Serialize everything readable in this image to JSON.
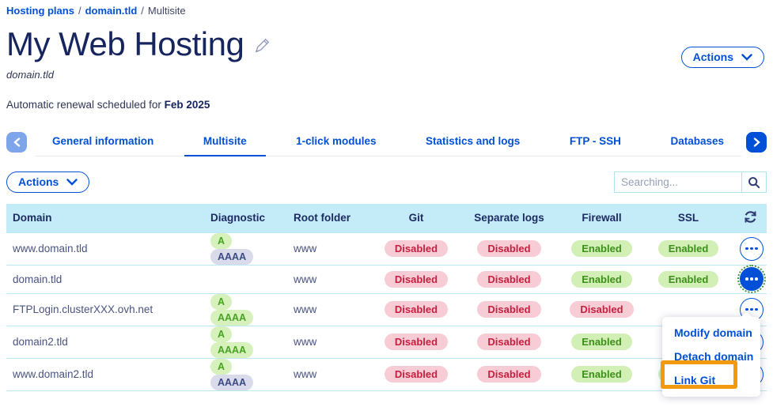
{
  "breadcrumb": {
    "separator": "/",
    "items": [
      {
        "label": "Hosting plans"
      },
      {
        "label": "domain.tld"
      },
      {
        "label": "Multisite"
      }
    ]
  },
  "header": {
    "title": "My Web Hosting",
    "subtitle": "domain.tld",
    "renewal_prefix": "Automatic renewal scheduled for",
    "renewal_date": "Feb 2025",
    "actions_label": "Actions"
  },
  "tabs": [
    {
      "label": "General information",
      "active": false
    },
    {
      "label": "Multisite",
      "active": true
    },
    {
      "label": "1-click modules",
      "active": false
    },
    {
      "label": "Statistics and logs",
      "active": false
    },
    {
      "label": "FTP - SSH",
      "active": false
    },
    {
      "label": "Databases",
      "active": false
    }
  ],
  "toolbar": {
    "actions_label": "Actions",
    "search_placeholder": "Searching..."
  },
  "table": {
    "columns": [
      "Domain",
      "Diagnostic",
      "Root folder",
      "Git",
      "Separate logs",
      "Firewall",
      "SSL"
    ],
    "rows": [
      {
        "domain": "www.domain.tld",
        "diagnostic": [
          {
            "label": "A",
            "variant": "green"
          },
          {
            "label": "AAAA",
            "variant": "gray"
          }
        ],
        "root_folder": "www",
        "git": "Disabled",
        "separate_logs": "Disabled",
        "firewall": "Enabled",
        "ssl": "Enabled",
        "menu_open": false
      },
      {
        "domain": "domain.tld",
        "diagnostic": [],
        "root_folder": "www",
        "git": "Disabled",
        "separate_logs": "Disabled",
        "firewall": "Enabled",
        "ssl": "Enabled",
        "menu_open": true
      },
      {
        "domain": "FTPLogin.clusterXXX.ovh.net",
        "diagnostic": [
          {
            "label": "A",
            "variant": "green"
          },
          {
            "label": "AAAA",
            "variant": "green"
          }
        ],
        "root_folder": "www",
        "git": "Disabled",
        "separate_logs": "Disabled",
        "firewall": "Disabled",
        "ssl": null,
        "menu_open": false
      },
      {
        "domain": "domain2.tld",
        "diagnostic": [
          {
            "label": "A",
            "variant": "green"
          },
          {
            "label": "AAAA",
            "variant": "green"
          }
        ],
        "root_folder": "www",
        "git": "Disabled",
        "separate_logs": "Disabled",
        "firewall": "Enabled",
        "ssl": null,
        "menu_open": false
      },
      {
        "domain": "www.domain2.tld",
        "diagnostic": [
          {
            "label": "A",
            "variant": "green"
          },
          {
            "label": "AAAA",
            "variant": "gray"
          }
        ],
        "root_folder": "www",
        "git": "Disabled",
        "separate_logs": "Disabled",
        "firewall": "Enabled",
        "ssl": "Enabled",
        "menu_open": false
      }
    ],
    "status_enabled": "Enabled",
    "status_disabled": "Disabled"
  },
  "context_menu": {
    "items": [
      {
        "label": "Modify domain",
        "highlighted": false
      },
      {
        "label": "Detach domain",
        "highlighted": false
      },
      {
        "label": "Link Git",
        "highlighted": true
      }
    ]
  },
  "colors": {
    "primary_blue": "#0050d7",
    "navy_text": "#1e2b61",
    "table_header_bg": "#c3ecf8",
    "enabled_bg": "#d2efb6",
    "enabled_text": "#3e8e1c",
    "disabled_bg": "#f8ccd5",
    "disabled_text": "#c51f3f",
    "annotation_orange": "#f2990f"
  }
}
